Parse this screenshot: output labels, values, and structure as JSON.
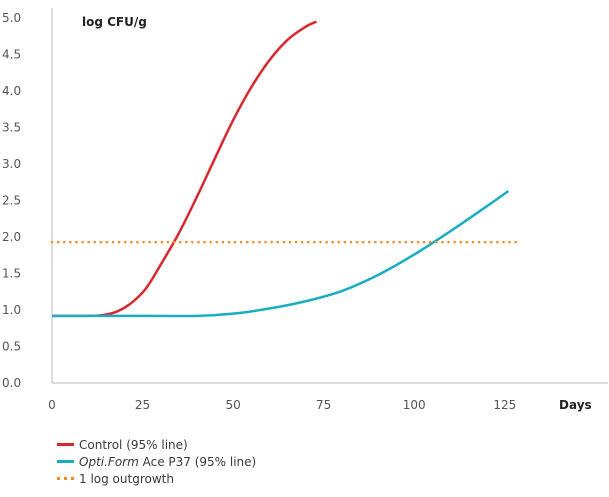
{
  "chart_data": {
    "type": "line",
    "title": "",
    "ylabel": "log CFU/g",
    "xlabel": "Days",
    "xlim": [
      0,
      135
    ],
    "ylim": [
      0,
      5.0
    ],
    "x_ticks": [
      0,
      25,
      50,
      75,
      100,
      125
    ],
    "y_ticks": [
      "0.0",
      "0.5",
      "1.0",
      "1.5",
      "2.0",
      "2.5",
      "3.0",
      "3.5",
      "4.0",
      "4.5",
      "5.0"
    ],
    "grid": false,
    "legend_position": "bottom-left",
    "series": [
      {
        "name": "Control (95% line)",
        "color": "#d7282f",
        "style": "solid",
        "points": [
          [
            0,
            0.92
          ],
          [
            10,
            0.92
          ],
          [
            14,
            0.93
          ],
          [
            18,
            0.98
          ],
          [
            22,
            1.1
          ],
          [
            26,
            1.3
          ],
          [
            30,
            1.62
          ],
          [
            35,
            2.05
          ],
          [
            40,
            2.55
          ],
          [
            45,
            3.08
          ],
          [
            50,
            3.6
          ],
          [
            55,
            4.05
          ],
          [
            60,
            4.42
          ],
          [
            65,
            4.7
          ],
          [
            70,
            4.88
          ],
          [
            73,
            4.95
          ]
        ]
      },
      {
        "name": "Opti.Form Ace P37 (95% line)",
        "name_brand": "Opti.Form",
        "name_rest": " Ace P37 (95% line)",
        "color": "#1aadc1",
        "style": "solid",
        "points": [
          [
            0,
            0.92
          ],
          [
            20,
            0.92
          ],
          [
            40,
            0.92
          ],
          [
            50,
            0.95
          ],
          [
            60,
            1.02
          ],
          [
            70,
            1.12
          ],
          [
            80,
            1.26
          ],
          [
            90,
            1.48
          ],
          [
            100,
            1.76
          ],
          [
            110,
            2.08
          ],
          [
            120,
            2.42
          ],
          [
            126,
            2.63
          ]
        ]
      },
      {
        "name": "1 log outgrowth",
        "color": "#f08a24",
        "style": "dotted",
        "points": [
          [
            0,
            1.93
          ],
          [
            128,
            1.93
          ]
        ]
      }
    ]
  }
}
